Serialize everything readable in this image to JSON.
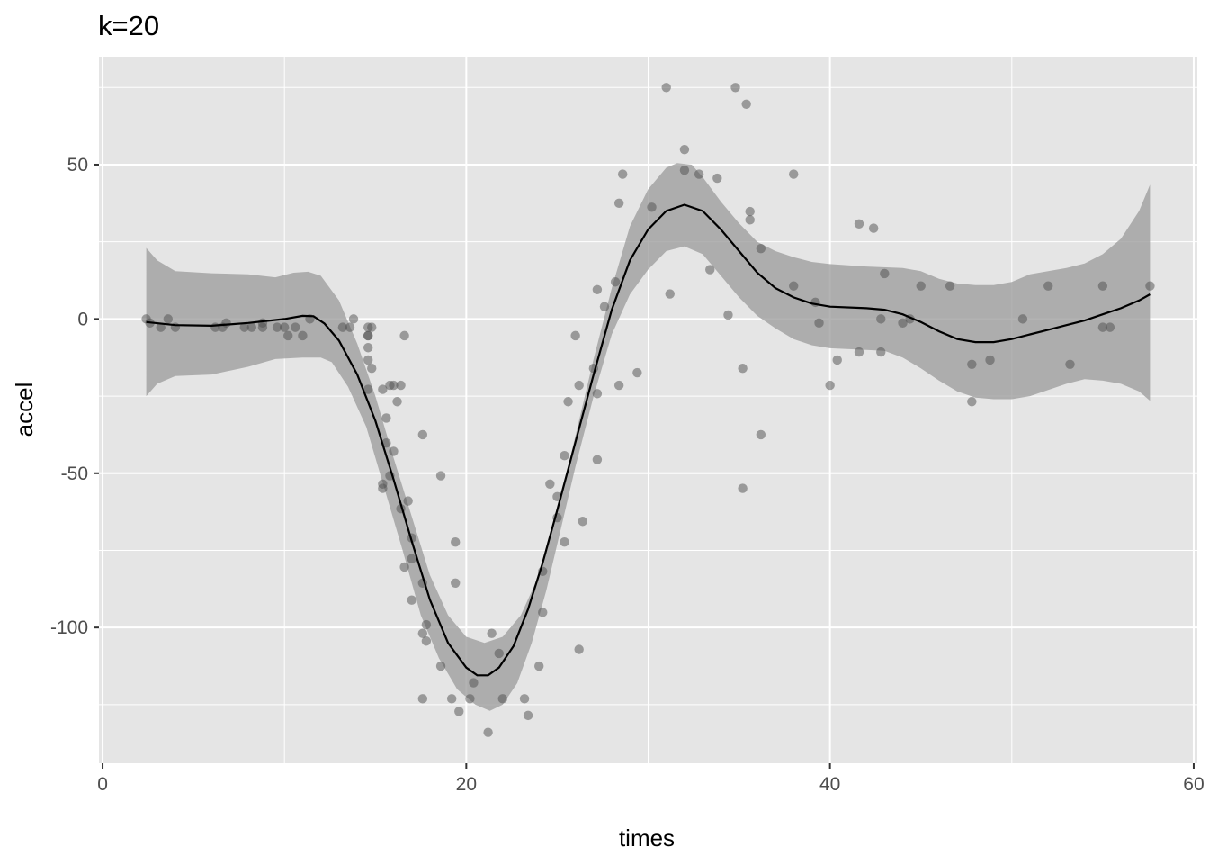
{
  "chart_data": {
    "type": "scatter",
    "title": "k=20",
    "xlabel": "times",
    "ylabel": "accel",
    "xlim": [
      -0.2,
      60.2
    ],
    "ylim": [
      -144,
      85
    ],
    "x_ticks": [
      0,
      20,
      40,
      60
    ],
    "y_ticks": [
      -100,
      -50,
      0,
      50
    ],
    "x_tick_labels": [
      "0",
      "20",
      "40",
      "60"
    ],
    "y_tick_labels": [
      "-100",
      "-50",
      "0",
      "50"
    ],
    "grid": true,
    "legend": "none",
    "colors": {
      "panel": "#e5e5e5",
      "grid": "#ffffff",
      "points": "#4d4d4d",
      "ribbon": "#999999",
      "smooth": "#000000"
    },
    "points": [
      [
        2.4,
        0
      ],
      [
        2.6,
        -1.3
      ],
      [
        3.2,
        -2.7
      ],
      [
        3.6,
        0
      ],
      [
        4.0,
        -2.7
      ],
      [
        6.2,
        -2.7
      ],
      [
        6.6,
        -2.7
      ],
      [
        6.8,
        -1.3
      ],
      [
        7.8,
        -2.7
      ],
      [
        8.2,
        -2.7
      ],
      [
        8.8,
        -1.3
      ],
      [
        8.8,
        -2.7
      ],
      [
        9.6,
        -2.7
      ],
      [
        10.0,
        -2.7
      ],
      [
        10.2,
        -5.4
      ],
      [
        10.6,
        -2.7
      ],
      [
        11.0,
        -5.4
      ],
      [
        11.4,
        0
      ],
      [
        13.2,
        -2.7
      ],
      [
        13.6,
        -2.7
      ],
      [
        13.8,
        0
      ],
      [
        14.6,
        -13.3
      ],
      [
        14.6,
        -2.7
      ],
      [
        14.6,
        -5.4
      ],
      [
        14.6,
        -9.3
      ],
      [
        14.6,
        -22.8
      ],
      [
        14.6,
        -5.4
      ],
      [
        14.8,
        -2.7
      ],
      [
        14.8,
        -16.0
      ],
      [
        15.4,
        -53.5
      ],
      [
        15.4,
        -22.8
      ],
      [
        15.4,
        -54.9
      ],
      [
        15.6,
        -32.1
      ],
      [
        15.6,
        -40.2
      ],
      [
        15.8,
        -21.5
      ],
      [
        15.8,
        -50.8
      ],
      [
        16.0,
        -21.5
      ],
      [
        16.0,
        -42.9
      ],
      [
        16.2,
        -26.8
      ],
      [
        16.4,
        -21.5
      ],
      [
        16.4,
        -61.5
      ],
      [
        16.6,
        -5.4
      ],
      [
        16.6,
        -80.4
      ],
      [
        16.8,
        -59.0
      ],
      [
        17.0,
        -71.0
      ],
      [
        17.0,
        -91.1
      ],
      [
        17.0,
        -77.7
      ],
      [
        17.6,
        -37.5
      ],
      [
        17.6,
        -85.6
      ],
      [
        17.6,
        -123.1
      ],
      [
        17.6,
        -101.9
      ],
      [
        17.8,
        -99.1
      ],
      [
        17.8,
        -104.4
      ],
      [
        18.6,
        -112.5
      ],
      [
        18.6,
        -50.8
      ],
      [
        19.2,
        -123.1
      ],
      [
        19.4,
        -85.6
      ],
      [
        19.4,
        -72.3
      ],
      [
        19.6,
        -127.2
      ],
      [
        20.2,
        -123.1
      ],
      [
        20.4,
        -117.9
      ],
      [
        21.2,
        -134.0
      ],
      [
        21.4,
        -101.9
      ],
      [
        21.8,
        -108.4
      ],
      [
        22.0,
        -123.1
      ],
      [
        23.2,
        -123.1
      ],
      [
        23.4,
        -128.5
      ],
      [
        24.0,
        -112.5
      ],
      [
        24.2,
        -95.1
      ],
      [
        24.2,
        -81.8
      ],
      [
        24.6,
        -53.5
      ],
      [
        25.0,
        -64.4
      ],
      [
        25.0,
        -57.6
      ],
      [
        25.4,
        -72.3
      ],
      [
        25.4,
        -44.3
      ],
      [
        25.6,
        -26.8
      ],
      [
        26.0,
        -5.4
      ],
      [
        26.2,
        -107.1
      ],
      [
        26.2,
        -21.5
      ],
      [
        26.4,
        -65.6
      ],
      [
        27.0,
        -16.0
      ],
      [
        27.2,
        -45.6
      ],
      [
        27.2,
        -24.2
      ],
      [
        27.2,
        9.5
      ],
      [
        27.6,
        4.0
      ],
      [
        28.2,
        12.0
      ],
      [
        28.4,
        -21.5
      ],
      [
        28.4,
        37.5
      ],
      [
        28.6,
        46.9
      ],
      [
        29.4,
        -17.4
      ],
      [
        30.2,
        36.2
      ],
      [
        31.0,
        75.0
      ],
      [
        31.2,
        8.1
      ],
      [
        32.0,
        54.9
      ],
      [
        32.0,
        48.2
      ],
      [
        32.8,
        46.9
      ],
      [
        33.4,
        16.0
      ],
      [
        33.8,
        45.6
      ],
      [
        34.4,
        1.3
      ],
      [
        34.8,
        75.0
      ],
      [
        35.2,
        -16.0
      ],
      [
        35.2,
        -54.9
      ],
      [
        35.4,
        69.6
      ],
      [
        35.6,
        32.1
      ],
      [
        35.6,
        34.8
      ],
      [
        36.2,
        22.8
      ],
      [
        36.2,
        -37.5
      ],
      [
        38.0,
        10.7
      ],
      [
        38.0,
        46.9
      ],
      [
        39.2,
        5.4
      ],
      [
        39.4,
        -1.3
      ],
      [
        40.0,
        -21.5
      ],
      [
        40.4,
        -13.3
      ],
      [
        41.6,
        30.8
      ],
      [
        41.6,
        -10.7
      ],
      [
        42.4,
        29.4
      ],
      [
        42.8,
        0
      ],
      [
        42.8,
        -10.7
      ],
      [
        43.0,
        14.7
      ],
      [
        44.0,
        -1.3
      ],
      [
        44.4,
        0
      ],
      [
        45.0,
        10.7
      ],
      [
        46.6,
        10.7
      ],
      [
        47.8,
        -26.8
      ],
      [
        47.8,
        -14.7
      ],
      [
        48.8,
        -13.3
      ],
      [
        50.6,
        0
      ],
      [
        52.0,
        10.7
      ],
      [
        53.2,
        -14.7
      ],
      [
        55.0,
        -2.7
      ],
      [
        55.0,
        10.7
      ],
      [
        55.4,
        -2.7
      ],
      [
        57.6,
        10.7
      ]
    ],
    "smooth": [
      [
        2.4,
        -1.0
      ],
      [
        4.0,
        -2.0
      ],
      [
        6.0,
        -2.2
      ],
      [
        8.0,
        -1.3
      ],
      [
        10.0,
        0.0
      ],
      [
        11.0,
        1.0
      ],
      [
        11.6,
        0.9
      ],
      [
        12.2,
        -1.5
      ],
      [
        13.0,
        -7.0
      ],
      [
        14.0,
        -18.0
      ],
      [
        15.0,
        -33.0
      ],
      [
        16.0,
        -52.0
      ],
      [
        17.0,
        -72.0
      ],
      [
        18.0,
        -91.0
      ],
      [
        19.0,
        -105.0
      ],
      [
        20.0,
        -113.0
      ],
      [
        20.6,
        -115.5
      ],
      [
        21.2,
        -115.5
      ],
      [
        21.8,
        -113.0
      ],
      [
        22.6,
        -106.0
      ],
      [
        23.4,
        -94.0
      ],
      [
        24.2,
        -79.0
      ],
      [
        25.0,
        -62.0
      ],
      [
        26.0,
        -40.0
      ],
      [
        27.0,
        -18.0
      ],
      [
        28.0,
        3.0
      ],
      [
        29.0,
        19.0
      ],
      [
        30.0,
        29.0
      ],
      [
        31.0,
        35.0
      ],
      [
        32.0,
        37.0
      ],
      [
        33.0,
        35.0
      ],
      [
        34.0,
        29.0
      ],
      [
        35.0,
        22.0
      ],
      [
        36.0,
        15.0
      ],
      [
        37.0,
        10.0
      ],
      [
        38.0,
        7.0
      ],
      [
        39.0,
        5.0
      ],
      [
        40.0,
        4.0
      ],
      [
        42.0,
        3.5
      ],
      [
        43.0,
        3.0
      ],
      [
        44.0,
        1.5
      ],
      [
        45.0,
        -1.0
      ],
      [
        46.0,
        -4.0
      ],
      [
        47.0,
        -6.5
      ],
      [
        48.0,
        -7.5
      ],
      [
        49.0,
        -7.5
      ],
      [
        50.0,
        -6.5
      ],
      [
        51.0,
        -5.0
      ],
      [
        52.0,
        -3.5
      ],
      [
        53.0,
        -2.0
      ],
      [
        54.0,
        -0.5
      ],
      [
        55.0,
        1.5
      ],
      [
        56.0,
        3.5
      ],
      [
        57.0,
        6.0
      ],
      [
        57.6,
        8.0
      ]
    ],
    "ribbon_upper": [
      [
        2.4,
        23.0
      ],
      [
        3.0,
        19.0
      ],
      [
        4.0,
        15.5
      ],
      [
        6.0,
        14.8
      ],
      [
        8.0,
        14.5
      ],
      [
        9.5,
        13.5
      ],
      [
        10.5,
        15.0
      ],
      [
        11.3,
        15.3
      ],
      [
        12.0,
        14.0
      ],
      [
        13.0,
        6.0
      ],
      [
        14.0,
        -8.0
      ],
      [
        15.0,
        -25.0
      ],
      [
        16.0,
        -45.0
      ],
      [
        17.0,
        -64.0
      ],
      [
        18.0,
        -83.0
      ],
      [
        19.0,
        -96.0
      ],
      [
        20.0,
        -103.0
      ],
      [
        21.0,
        -105.0
      ],
      [
        22.0,
        -103.0
      ],
      [
        23.0,
        -96.0
      ],
      [
        24.0,
        -83.0
      ],
      [
        25.0,
        -63.0
      ],
      [
        26.0,
        -38.0
      ],
      [
        27.0,
        -13.0
      ],
      [
        28.0,
        10.0
      ],
      [
        29.0,
        30.0
      ],
      [
        30.0,
        42.0
      ],
      [
        31.0,
        49.0
      ],
      [
        31.6,
        50.5
      ],
      [
        32.4,
        50.0
      ],
      [
        33.0,
        46.0
      ],
      [
        34.0,
        38.0
      ],
      [
        35.0,
        31.0
      ],
      [
        36.0,
        25.0
      ],
      [
        37.0,
        22.0
      ],
      [
        38.0,
        20.0
      ],
      [
        39.0,
        18.5
      ],
      [
        40.0,
        17.8
      ],
      [
        42.0,
        17.0
      ],
      [
        44.0,
        16.5
      ],
      [
        45.0,
        15.5
      ],
      [
        46.0,
        13.0
      ],
      [
        47.0,
        11.5
      ],
      [
        48.0,
        11.0
      ],
      [
        49.0,
        11.0
      ],
      [
        50.0,
        12.0
      ],
      [
        51.0,
        14.5
      ],
      [
        52.0,
        15.5
      ],
      [
        53.0,
        16.5
      ],
      [
        54.0,
        18.0
      ],
      [
        55.0,
        21.0
      ],
      [
        56.0,
        26.0
      ],
      [
        57.0,
        35.0
      ],
      [
        57.6,
        43.5
      ]
    ],
    "ribbon_lower": [
      [
        2.4,
        -25.0
      ],
      [
        3.0,
        -21.0
      ],
      [
        4.0,
        -18.5
      ],
      [
        6.0,
        -18.0
      ],
      [
        8.0,
        -15.5
      ],
      [
        9.5,
        -13.0
      ],
      [
        11.0,
        -12.5
      ],
      [
        12.0,
        -12.5
      ],
      [
        12.6,
        -14.0
      ],
      [
        13.5,
        -22.0
      ],
      [
        14.5,
        -35.0
      ],
      [
        15.5,
        -55.0
      ],
      [
        16.5,
        -75.0
      ],
      [
        17.5,
        -96.0
      ],
      [
        18.5,
        -110.0
      ],
      [
        19.5,
        -120.0
      ],
      [
        20.5,
        -125.0
      ],
      [
        21.3,
        -127.0
      ],
      [
        22.0,
        -125.0
      ],
      [
        22.8,
        -118.0
      ],
      [
        23.6,
        -105.0
      ],
      [
        24.4,
        -88.0
      ],
      [
        25.2,
        -68.0
      ],
      [
        26.0,
        -48.0
      ],
      [
        27.0,
        -25.0
      ],
      [
        28.0,
        -5.0
      ],
      [
        29.0,
        8.0
      ],
      [
        30.0,
        16.0
      ],
      [
        31.0,
        22.0
      ],
      [
        32.0,
        23.5
      ],
      [
        33.0,
        21.0
      ],
      [
        34.0,
        14.0
      ],
      [
        35.0,
        7.0
      ],
      [
        36.0,
        1.0
      ],
      [
        37.0,
        -3.0
      ],
      [
        38.0,
        -6.5
      ],
      [
        39.0,
        -8.5
      ],
      [
        40.0,
        -9.5
      ],
      [
        42.0,
        -10.0
      ],
      [
        43.0,
        -10.3
      ],
      [
        44.0,
        -12.5
      ],
      [
        45.0,
        -16.0
      ],
      [
        46.0,
        -20.0
      ],
      [
        47.0,
        -23.5
      ],
      [
        48.0,
        -25.5
      ],
      [
        49.0,
        -26.0
      ],
      [
        50.0,
        -26.0
      ],
      [
        51.0,
        -25.0
      ],
      [
        52.0,
        -23.0
      ],
      [
        53.0,
        -21.0
      ],
      [
        54.0,
        -19.5
      ],
      [
        55.0,
        -20.0
      ],
      [
        56.0,
        -21.0
      ],
      [
        57.0,
        -23.5
      ],
      [
        57.6,
        -26.5
      ]
    ]
  }
}
